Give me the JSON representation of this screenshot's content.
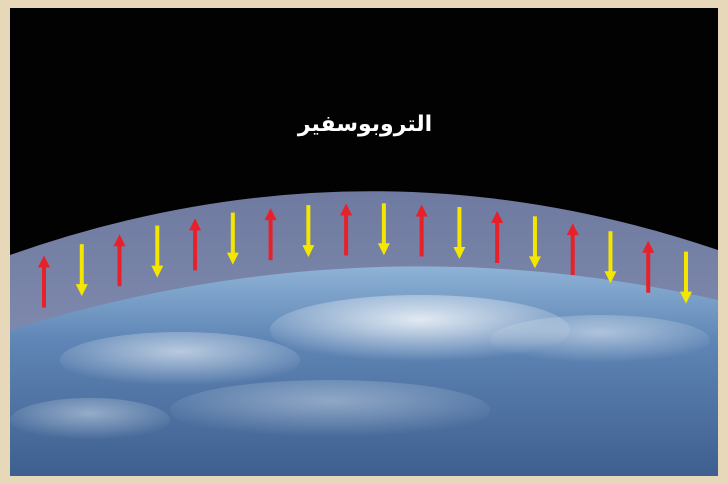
{
  "figure": {
    "label": "التروبوسفير"
  },
  "arrows": [
    {
      "direction": "up",
      "color": "#e8202a"
    },
    {
      "direction": "down",
      "color": "#f5e600"
    },
    {
      "direction": "up",
      "color": "#e8202a"
    },
    {
      "direction": "down",
      "color": "#f5e600"
    },
    {
      "direction": "up",
      "color": "#e8202a"
    },
    {
      "direction": "down",
      "color": "#f5e600"
    },
    {
      "direction": "up",
      "color": "#e8202a"
    },
    {
      "direction": "down",
      "color": "#f5e600"
    },
    {
      "direction": "up",
      "color": "#e8202a"
    },
    {
      "direction": "down",
      "color": "#f5e600"
    },
    {
      "direction": "up",
      "color": "#e8202a"
    },
    {
      "direction": "down",
      "color": "#f5e600"
    },
    {
      "direction": "up",
      "color": "#e8202a"
    },
    {
      "direction": "down",
      "color": "#f5e600"
    },
    {
      "direction": "up",
      "color": "#e8202a"
    },
    {
      "direction": "down",
      "color": "#f5e600"
    },
    {
      "direction": "up",
      "color": "#e8202a"
    },
    {
      "direction": "down",
      "color": "#f5e600"
    }
  ],
  "colors": {
    "space": "#020202",
    "atmosphere": "#7f8bb0",
    "earth": "#5f86b6",
    "border": "#e6d8b8"
  }
}
